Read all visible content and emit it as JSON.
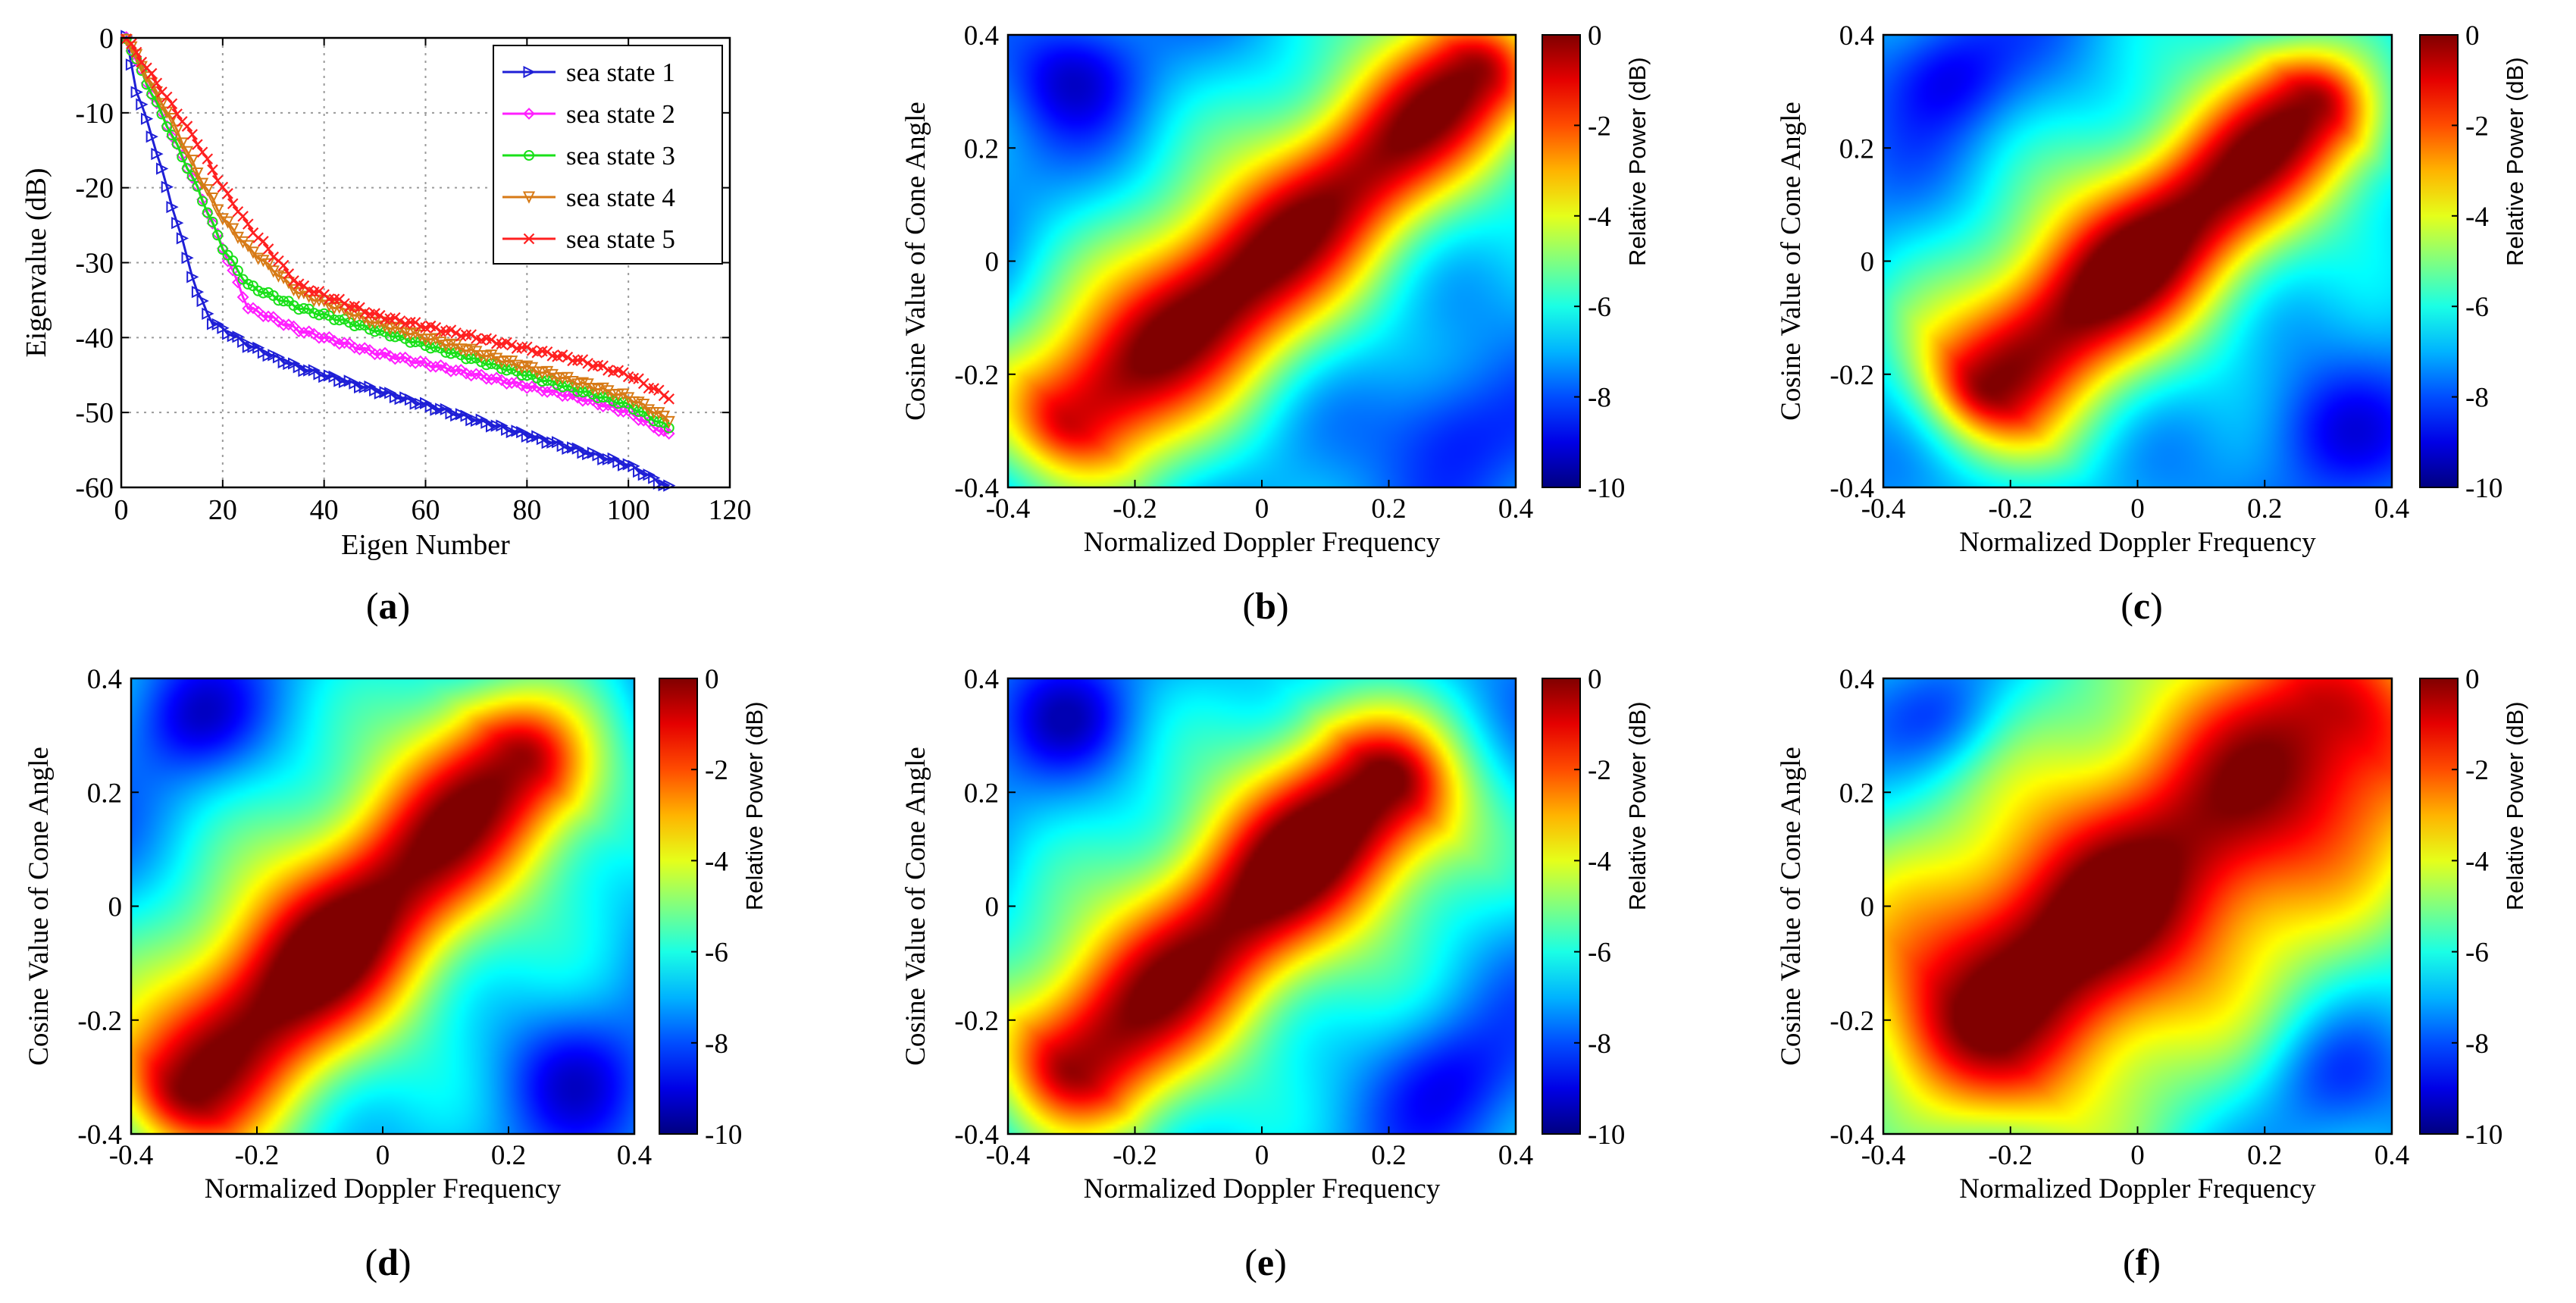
{
  "chart_data": [
    {
      "type": "line",
      "panel": "a",
      "title": "",
      "xlabel": "Eigen Number",
      "ylabel": "Eigenvalue (dB)",
      "xlim": [
        0,
        120
      ],
      "ylim": [
        -60,
        0
      ],
      "xticks": [
        0,
        20,
        40,
        60,
        80,
        100,
        120
      ],
      "yticks": [
        0,
        -10,
        -20,
        -30,
        -40,
        -50,
        -60
      ],
      "grid": true,
      "legend_position": "top-right",
      "series": [
        {
          "name": "sea state 1",
          "color": "#1f1fd6",
          "marker": "triangle-right",
          "x": [
            1,
            3,
            6,
            9,
            12,
            15,
            18,
            25,
            35,
            50,
            70,
            90,
            100,
            108
          ],
          "y": [
            0,
            -7,
            -13,
            -20,
            -27,
            -34,
            -38,
            -41,
            -44,
            -47,
            -51,
            -55,
            -57,
            -60
          ]
        },
        {
          "name": "sea state 2",
          "color": "#ff1fff",
          "marker": "diamond",
          "x": [
            1,
            5,
            10,
            15,
            20,
            25,
            35,
            50,
            70,
            90,
            100,
            108
          ],
          "y": [
            0,
            -6,
            -13,
            -20,
            -28,
            -36,
            -39,
            -42,
            -45,
            -48,
            -50,
            -53
          ]
        },
        {
          "name": "sea state 3",
          "color": "#19e019",
          "marker": "circle",
          "x": [
            1,
            5,
            10,
            15,
            20,
            25,
            35,
            50,
            70,
            90,
            100,
            108
          ],
          "y": [
            0,
            -6,
            -13,
            -20,
            -28,
            -33,
            -36,
            -39,
            -43,
            -47,
            -49,
            -52
          ]
        },
        {
          "name": "sea state 4",
          "color": "#d77a16",
          "marker": "triangle-down",
          "x": [
            1,
            5,
            10,
            15,
            20,
            25,
            35,
            50,
            70,
            90,
            100,
            108
          ],
          "y": [
            0,
            -5,
            -11,
            -18,
            -24,
            -28,
            -34,
            -38,
            -42,
            -46,
            -48,
            -51
          ]
        },
        {
          "name": "sea state 5",
          "color": "#ff2020",
          "marker": "x",
          "x": [
            1,
            5,
            10,
            15,
            20,
            25,
            35,
            50,
            70,
            90,
            100,
            108
          ],
          "y": [
            0,
            -4,
            -9,
            -14,
            -20,
            -25,
            -33,
            -37,
            -40,
            -43,
            -45,
            -48
          ]
        }
      ]
    },
    {
      "type": "heatmap",
      "panel": "b",
      "xlabel": "Normalized Doppler Frequency",
      "ylabel": "Cosine Value of Cone Angle",
      "xlim": [
        -0.4,
        0.4
      ],
      "ylim": [
        -0.4,
        0.4
      ],
      "xticks": [
        "-0.4",
        "-0.2",
        "0",
        "0.2",
        "0.4"
      ],
      "yticks": [
        "0.4",
        "0.2",
        "0",
        "-0.2",
        "-0.4"
      ],
      "colorbar": {
        "label": "Relative Power (dB)",
        "ticks": [
          "0",
          "-2",
          "-4",
          "-6",
          "-8",
          "-10"
        ],
        "range": [
          -10,
          0
        ]
      },
      "ridge": {
        "from": [
          -0.3,
          -0.28
        ],
        "to": [
          0.34,
          0.34
        ],
        "width": 0.07,
        "peak": [
          -0.06,
          -0.08
        ]
      }
    },
    {
      "type": "heatmap",
      "panel": "c",
      "xlabel": "Normalized Doppler Frequency",
      "ylabel": "Cosine Value of Cone Angle",
      "xlim": [
        -0.4,
        0.4
      ],
      "ylim": [
        -0.4,
        0.4
      ],
      "xticks": [
        "-0.4",
        "-0.2",
        "0",
        "0.2",
        "0.4"
      ],
      "yticks": [
        "0.4",
        "0.2",
        "0",
        "-0.2",
        "-0.4"
      ],
      "colorbar": {
        "label": "Relative Power (dB)",
        "ticks": [
          "0",
          "-2",
          "-4",
          "-6",
          "-8",
          "-10"
        ],
        "range": [
          -10,
          0
        ]
      },
      "ridge": {
        "from": [
          -0.24,
          -0.22
        ],
        "to": [
          0.28,
          0.28
        ],
        "width": 0.07,
        "peak": [
          -0.02,
          0.0
        ]
      }
    },
    {
      "type": "heatmap",
      "panel": "d",
      "xlabel": "Normalized Doppler Frequency",
      "ylabel": "Cosine Value of Cone Angle",
      "xlim": [
        -0.4,
        0.4
      ],
      "ylim": [
        -0.4,
        0.4
      ],
      "xticks": [
        "-0.4",
        "-0.2",
        "0",
        "0.2",
        "0.4"
      ],
      "yticks": [
        "0.4",
        "0.2",
        "0",
        "-0.2",
        "-0.4"
      ],
      "colorbar": {
        "label": "Relative Power (dB)",
        "ticks": [
          "0",
          "-2",
          "-4",
          "-6",
          "-8",
          "-10"
        ],
        "range": [
          -10,
          0
        ]
      },
      "ridge": {
        "from": [
          -0.32,
          -0.32
        ],
        "to": [
          0.22,
          0.26
        ],
        "width": 0.08,
        "peak": [
          -0.1,
          -0.1
        ]
      }
    },
    {
      "type": "heatmap",
      "panel": "e",
      "xlabel": "Normalized Doppler Frequency",
      "ylabel": "Cosine Value of Cone Angle",
      "xlim": [
        -0.4,
        0.4
      ],
      "ylim": [
        -0.4,
        0.4
      ],
      "xticks": [
        "-0.4",
        "-0.2",
        "0",
        "0.2",
        "0.4"
      ],
      "yticks": [
        "0.4",
        "0.2",
        "0",
        "-0.2",
        "-0.4"
      ],
      "colorbar": {
        "label": "Relative Power (dB)",
        "ticks": [
          "0",
          "-2",
          "-4",
          "-6",
          "-8",
          "-10"
        ],
        "range": [
          -10,
          0
        ]
      },
      "ridge": {
        "from": [
          -0.3,
          -0.28
        ],
        "to": [
          0.2,
          0.22
        ],
        "width": 0.08,
        "peak": [
          0.08,
          0.12
        ]
      }
    },
    {
      "type": "heatmap",
      "panel": "f",
      "xlabel": "Normalized Doppler Frequency",
      "ylabel": "Cosine Value of Cone Angle",
      "xlim": [
        -0.4,
        0.4
      ],
      "ylim": [
        -0.4,
        0.4
      ],
      "xticks": [
        "-0.4",
        "-0.2",
        "0",
        "0.2",
        "0.4"
      ],
      "yticks": [
        "0.4",
        "0.2",
        "0",
        "-0.2",
        "-0.4"
      ],
      "colorbar": {
        "label": "Relative Power (dB)",
        "ticks": [
          "0",
          "-2",
          "-4",
          "-6",
          "-8",
          "-10"
        ],
        "range": [
          -10,
          0
        ]
      },
      "ridge": {
        "from": [
          -0.26,
          -0.2
        ],
        "to": [
          0.32,
          0.32
        ],
        "width": 0.13,
        "peak": [
          -0.1,
          -0.05
        ]
      }
    }
  ],
  "panel_labels": [
    {
      "open": "(",
      "letter": "a",
      "close": ")"
    },
    {
      "open": "(",
      "letter": "b",
      "close": ")"
    },
    {
      "open": "(",
      "letter": "c",
      "close": ")"
    },
    {
      "open": "(",
      "letter": "d",
      "close": ")"
    },
    {
      "open": "(",
      "letter": "e",
      "close": ")"
    },
    {
      "open": "(",
      "letter": "f",
      "close": ")"
    }
  ]
}
